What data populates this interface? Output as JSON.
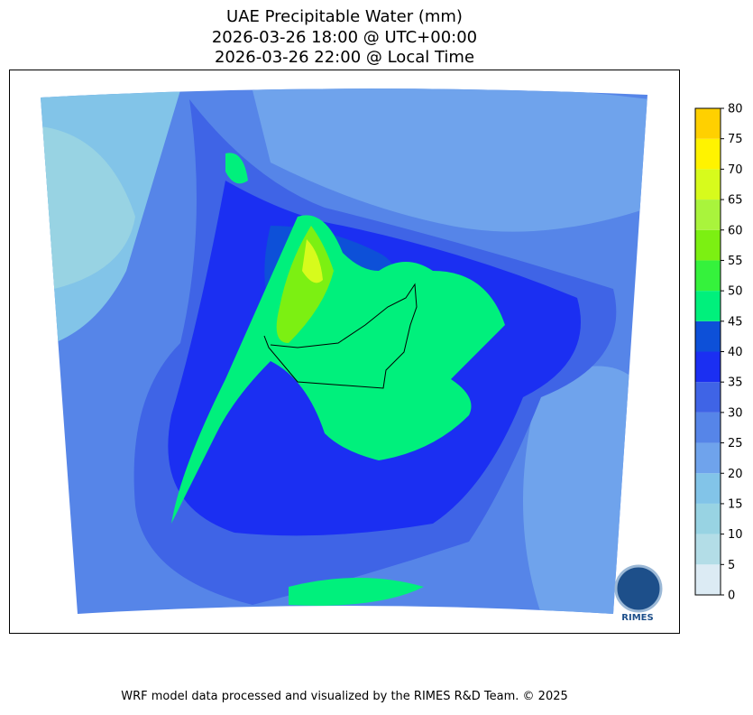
{
  "title": [
    "UAE Precipitable Water (mm)",
    "2026-03-26 18:00 @ UTC+00:00",
    "2026-03-26 22:00 @ Local Time"
  ],
  "colorbar": {
    "ticks": [
      0,
      5,
      10,
      15,
      20,
      25,
      30,
      35,
      40,
      45,
      50,
      55,
      60,
      65,
      70,
      75,
      80
    ],
    "colors": [
      "#dcebf4",
      "#b3dde7",
      "#98d3e3",
      "#82c4e8",
      "#6fa3ec",
      "#5685e8",
      "#3f64e6",
      "#1b2ff2",
      "#0d50d8",
      "#00f07c",
      "#35f23c",
      "#7cf012",
      "#a9f43c",
      "#d7fb1c",
      "#fff300",
      "#ffd000"
    ]
  },
  "logo": "RIMES",
  "footer": "WRF model data processed and visualized by the RIMES R&D Team. © 2025"
}
